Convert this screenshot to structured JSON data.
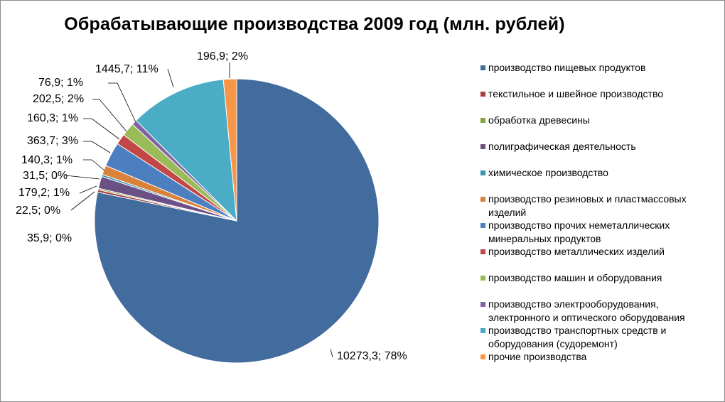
{
  "chart_data": {
    "type": "pie",
    "title": "Обрабатывающие  производства  2009 год (млн. рублей)",
    "categories": [
      "производство пищевых продуктов",
      "текстильное и швейное производство",
      "обработка древесины",
      "полиграфическая деятельность",
      "химическое производство",
      "производство резиновых и пластмассовых изделий",
      "производство прочих неметаллических минеральных продуктов",
      "производство металлических изделий",
      "производство машин и оборудования",
      "производство электрооборудования, электронного и оптического оборудования",
      "производство транспортных средств и оборудования (судоремонт)",
      "прочие производства"
    ],
    "values": [
      10273.3,
      35.9,
      22.5,
      179.2,
      31.5,
      140.3,
      363.7,
      160.3,
      202.5,
      76.9,
      1445.7,
      196.9
    ],
    "data_labels": [
      "10273,3; 78%",
      "35,9; 0%",
      "22,5; 0%",
      "179,2; 1%",
      "31,5; 0%",
      "140,3; 1%",
      "363,7; 3%",
      "160,3; 1%",
      "202,5; 2%",
      "76,9; 1%",
      "1445,7; 11%",
      "196,9; 2%"
    ],
    "colors": [
      "#426b9e",
      "#a6403d",
      "#83a343",
      "#6b5086",
      "#3d96ad",
      "#d8823a",
      "#4c7fc0",
      "#c34744",
      "#9bbb59",
      "#8064a2",
      "#4bacc6",
      "#f79646"
    ],
    "legend_position": "right"
  }
}
